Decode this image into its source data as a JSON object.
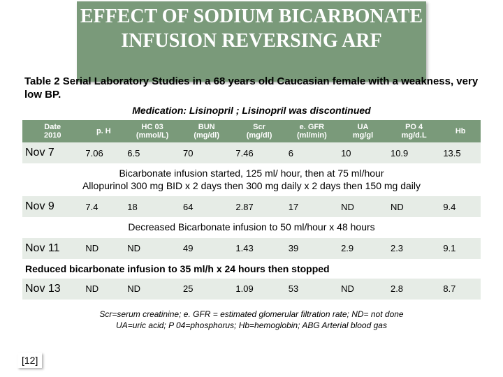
{
  "title": "EFFECT OF SODIUM BICARBONATE INFUSION REVERSING ARF",
  "subtitle": "Table 2 Serial Laboratory Studies in a  68 years old Caucasian female with a  weakness, very low BP.",
  "medication": "Medication: Lisinopril ; Lisinopril was discontinued",
  "headers": {
    "c0": "Date\n2010",
    "c1": "p. H",
    "c2": "HC 03\n(mmol/L)",
    "c3": "BUN\n(mg/dl)",
    "c4": "Scr\n(mg/dl)",
    "c5": "e. GFR\n(ml/min)",
    "c6": "UA\nmg/gl",
    "c7": "PO 4\nmg/d.L",
    "c8": "Hb"
  },
  "rows": {
    "r1": {
      "date": "Nov 7",
      "ph": "7.06",
      "hco3": "6.5",
      "bun": "70",
      "scr": "7.46",
      "egfr": "6",
      "ua": "10",
      "po4": "10.9",
      "hb": "13.5"
    },
    "r2": {
      "date": "Nov 9",
      "ph": "7.4",
      "hco3": "18",
      "bun": "64",
      "scr": "2.87",
      "egfr": "17",
      "ua": "ND",
      "po4": "ND",
      "hb": "9.4"
    },
    "r3": {
      "date": "Nov 11",
      "ph": "ND",
      "hco3": "ND",
      "bun": "49",
      "scr": "1.43",
      "egfr": "39",
      "ua": "2.9",
      "po4": "2.3",
      "hb": "9.1"
    },
    "r4": {
      "date": "Nov 13",
      "ph": "ND",
      "hco3": "ND",
      "bun": "25",
      "scr": "1.09",
      "egfr": "53",
      "ua": "ND",
      "po4": "2.8",
      "hb": "8.7"
    }
  },
  "notes": {
    "n1": "Bicarbonate infusion started, 125 ml/ hour, then at 75 ml/hour\nAllopurinol 300 mg BID x 2 days then 300 mg daily x 2 days then 150 mg daily",
    "n2": "Decreased Bicarbonate infusion to 50 ml/hour x 48 hours",
    "n3": "Reduced bicarbonate infusion to 35 ml/h x 24 hours then stopped"
  },
  "footnote": "Scr=serum creatinine; e. GFR = estimated glomerular filtration rate; ND= not done\nUA=uric acid; P 04=phosphorus; Hb=hemoglobin; ABG Arterial blood gas",
  "ref": "[12]",
  "colors": {
    "banner_bg": "#7a9a7a",
    "banner_fg": "#ffffff",
    "row_bg": "#e6ece6",
    "page_bg": "#ffffff"
  },
  "col_widths": [
    "78",
    "54",
    "72",
    "68",
    "68",
    "68",
    "64",
    "68",
    "52"
  ]
}
